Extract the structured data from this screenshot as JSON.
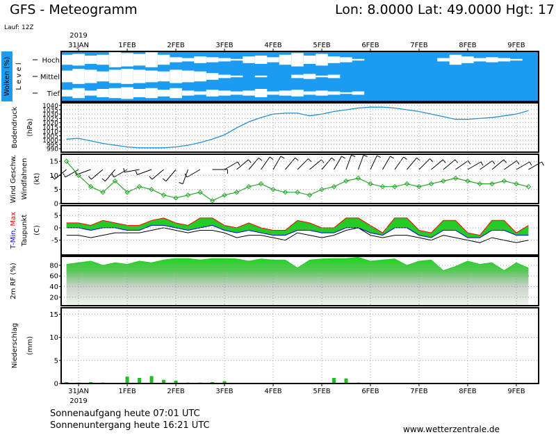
{
  "chart_data": {
    "type": "meteogram",
    "title": "GFS - Meteogramm",
    "location": "Lon: 8.0000 Lat: 49.0000 Hgt: 17",
    "run": "Lauf: 12Z",
    "year": "2019",
    "x": [
      -6,
      0,
      6,
      12,
      18,
      24,
      30,
      36,
      42,
      48,
      54,
      60,
      66,
      72,
      78,
      84,
      90,
      96,
      102,
      108,
      114,
      120,
      126,
      132,
      138,
      144,
      150,
      156,
      162,
      168,
      174,
      180,
      186,
      192,
      198,
      204,
      210,
      216,
      222
    ],
    "xlim": [
      -8.6,
      227
    ],
    "xticks": [
      {
        "value": 0,
        "label": "31JAN"
      },
      {
        "value": 24,
        "label": "1FEB"
      },
      {
        "value": 48,
        "label": "2FEB"
      },
      {
        "value": 72,
        "label": "3FEB"
      },
      {
        "value": 96,
        "label": "4FEB"
      },
      {
        "value": 120,
        "label": "5FEB"
      },
      {
        "value": 144,
        "label": "6FEB"
      },
      {
        "value": 168,
        "label": "7FEB"
      },
      {
        "value": 192,
        "label": "8FEB"
      },
      {
        "value": 216,
        "label": "9FEB"
      }
    ],
    "panels": [
      {
        "type": "clouds",
        "title": "Wolken (%)",
        "subtitle": "L e v e l",
        "color": "#1c9cf0",
        "series": [
          {
            "name": "Hoch",
            "color": "#ffffff",
            "values": [
              60,
              70,
              50,
              60,
              90,
              80,
              70,
              90,
              60,
              30,
              20,
              40,
              30,
              20,
              10,
              40,
              50,
              30,
              60,
              80,
              50,
              70,
              40,
              30,
              10,
              0,
              0,
              0,
              0,
              0,
              0,
              20,
              60,
              40,
              20,
              30,
              20,
              10,
              0
            ]
          },
          {
            "name": "Mittel",
            "color": "#ffffff",
            "values": [
              70,
              90,
              80,
              60,
              80,
              90,
              80,
              70,
              60,
              80,
              70,
              60,
              40,
              20,
              10,
              0,
              10,
              0,
              0,
              20,
              30,
              10,
              20,
              0,
              0,
              0,
              0,
              0,
              0,
              0,
              0,
              0,
              0,
              0,
              0,
              0,
              0,
              0,
              0
            ]
          },
          {
            "name": "Tief",
            "color": "#ffffff",
            "values": [
              40,
              60,
              30,
              50,
              60,
              70,
              50,
              60,
              40,
              60,
              30,
              20,
              40,
              30,
              20,
              30,
              50,
              20,
              30,
              40,
              20,
              30,
              20,
              10,
              20,
              0,
              0,
              0,
              0,
              0,
              0,
              0,
              0,
              0,
              0,
              0,
              0,
              0,
              0
            ]
          }
        ]
      },
      {
        "type": "line",
        "unit": "(hPa)",
        "ylim": [
          986,
          1043
        ],
        "yticks": [
          990,
          995,
          1000,
          1005,
          1010,
          1015,
          1020,
          1025,
          1030,
          1035,
          1040
        ],
        "grid": true,
        "series": [
          {
            "name": "Bodendruck",
            "color": "#1f8fd6",
            "values": [
              1001,
              1002,
              999,
              996,
              994,
              992,
              991,
              991,
              991,
              992,
              994,
              997,
              1001,
              1006,
              1014,
              1021,
              1026,
              1030,
              1031,
              1031,
              1028,
              1030,
              1033,
              1035,
              1037,
              1038,
              1038,
              1037,
              1035,
              1033,
              1030,
              1027,
              1024,
              1024,
              1025,
              1026,
              1028,
              1030,
              1034
            ]
          }
        ]
      },
      {
        "type": "wind",
        "unit": "(kt)",
        "ylim": [
          0,
          17.5
        ],
        "yticks": [
          0,
          5,
          10,
          15
        ],
        "grid": true,
        "series": [
          {
            "name": "Wind Geschw.",
            "color": "#22aa22",
            "values": [
              15,
              10,
              6,
              4,
              8,
              4,
              6,
              5,
              3,
              2,
              3,
              4,
              1,
              3,
              4,
              6,
              7,
              5,
              4,
              4,
              3,
              5,
              6,
              8,
              9,
              7,
              6,
              6,
              7,
              6,
              7,
              8,
              9,
              8,
              7,
              7,
              8,
              7,
              6
            ]
          },
          {
            "name": "Windfahnen",
            "color": "#000000",
            "values": [
              230,
              240,
              250,
              230,
              220,
              240,
              260,
              250,
              230,
              220,
              200,
              240,
              90,
              60,
              50,
              40,
              35,
              30,
              40,
              45,
              50,
              40,
              30,
              20,
              20,
              25,
              30,
              35,
              40,
              45,
              50,
              50,
              55,
              60,
              55,
              50,
              55,
              60,
              60
            ]
          }
        ]
      },
      {
        "type": "temperature",
        "unit": "(C)",
        "ylim": [
          -11,
          9
        ],
        "yticks": [
          -5,
          0,
          5
        ],
        "grid": true,
        "fill": "#22cc22",
        "series": [
          {
            "name": "T-Min,",
            "color": "#0000ff",
            "values": [
              0,
              0,
              -1,
              0,
              0,
              -1,
              -1,
              1,
              1,
              0,
              -1,
              0,
              1,
              -1,
              -2,
              -1,
              -2,
              -3,
              -3,
              -1,
              -1,
              -2,
              -2,
              0,
              0,
              -2,
              -3,
              0,
              0,
              -3,
              -4,
              -1,
              -1,
              -4,
              -4,
              -1,
              -1,
              -3,
              -3
            ]
          },
          {
            "name": "Max",
            "color": "#ff0000",
            "values": [
              2,
              2,
              1,
              3,
              2,
              1,
              1,
              3,
              4,
              2,
              1,
              4,
              4,
              1,
              0,
              2,
              0,
              -1,
              -1,
              3,
              2,
              0,
              0,
              4,
              4,
              1,
              -2,
              4,
              4,
              -1,
              -2,
              3,
              3,
              -2,
              -3,
              3,
              3,
              -2,
              1
            ]
          },
          {
            "name": "Taupunkt",
            "color": "#000000",
            "values": [
              -3,
              -3,
              -4,
              -3,
              -2,
              -2,
              -2,
              -1,
              0,
              -1,
              -2,
              -1,
              -1,
              -2,
              -4,
              -3,
              -3,
              -4,
              -5,
              -2,
              -3,
              -4,
              -3,
              -1,
              0,
              -3,
              -4,
              -3,
              -3,
              -4,
              -5,
              -3,
              -4,
              -5,
              -6,
              -4,
              -5,
              -6,
              -5
            ]
          }
        ]
      },
      {
        "type": "area",
        "ylim": [
          4,
          97
        ],
        "yticks": [
          20,
          40,
          60,
          80
        ],
        "grid": true,
        "series": [
          {
            "name": "2m RF (%)",
            "color": "#22cc22",
            "values": [
              82,
              85,
              88,
              80,
              85,
              82,
              88,
              85,
              90,
              93,
              93,
              90,
              93,
              93,
              92,
              88,
              92,
              90,
              90,
              75,
              90,
              92,
              93,
              93,
              95,
              88,
              90,
              92,
              80,
              88,
              90,
              70,
              78,
              88,
              82,
              85,
              70,
              85,
              75
            ]
          }
        ]
      },
      {
        "type": "bar",
        "unit": "(mm)",
        "ylim": [
          0,
          16.4
        ],
        "yticks": [
          0,
          5,
          10,
          15
        ],
        "grid": true,
        "series": [
          {
            "name": "Niederschlag",
            "color": "#22bb22",
            "values": [
              0.3,
              0.2,
              0.3,
              0.2,
              0.1,
              1.5,
              1.2,
              1.6,
              0.8,
              0.6,
              0.2,
              0.2,
              0.3,
              0.5,
              0,
              0,
              0,
              0,
              0,
              0,
              0,
              0,
              1.2,
              1.1,
              0.2,
              0,
              0,
              0,
              0,
              0,
              0,
              0,
              0,
              0,
              0,
              0,
              0,
              0,
              0
            ]
          }
        ]
      }
    ],
    "sunrise": "Sonnenaufgang heute 07:01 UTC",
    "sunset": "Sonnenuntergang heute 16:21 UTC",
    "source": "www.wetterzentrale.de"
  }
}
